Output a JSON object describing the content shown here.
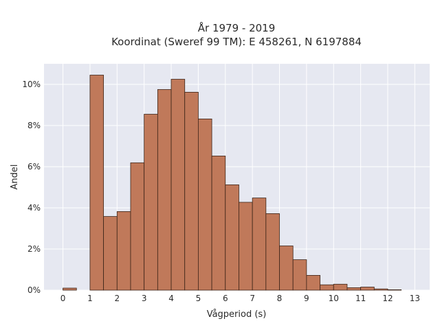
{
  "chart_data": {
    "type": "bar",
    "title_lines": [
      "År 1979 - 2019",
      "Koordinat (Sweref 99 TM): E 458261, N 6197884"
    ],
    "xlabel": "Vågperiod (s)",
    "ylabel": "Andel",
    "bin_width": 0.5,
    "bin_starts": [
      0,
      0.5,
      1,
      1.5,
      2,
      2.5,
      3,
      3.5,
      4,
      4.5,
      5,
      5.5,
      6,
      6.5,
      7,
      7.5,
      8,
      8.5,
      9,
      9.5,
      10,
      10.5,
      11,
      11.5,
      12,
      12.5
    ],
    "values": [
      0.1,
      0,
      10.45,
      3.58,
      3.82,
      6.19,
      8.55,
      9.75,
      10.25,
      9.62,
      8.32,
      6.52,
      5.12,
      4.27,
      4.48,
      3.72,
      2.15,
      1.48,
      0.72,
      0.26,
      0.29,
      0.12,
      0.15,
      0.06,
      0.02,
      0
    ],
    "xlim": [
      -0.7,
      13.55
    ],
    "ylim": [
      0,
      11.0
    ],
    "x_ticks": [
      0,
      1,
      2,
      3,
      4,
      5,
      6,
      7,
      8,
      9,
      10,
      11,
      12,
      13
    ],
    "x_tick_labels": [
      "0",
      "1",
      "2",
      "3",
      "4",
      "5",
      "6",
      "7",
      "8",
      "9",
      "10",
      "11",
      "12",
      "13"
    ],
    "y_ticks": [
      0,
      2,
      4,
      6,
      8,
      10
    ],
    "y_tick_labels": [
      "0%",
      "2%",
      "4%",
      "6%",
      "8%",
      "10%"
    ],
    "grid": true,
    "colors": {
      "bar_fill": "#c0795a",
      "bar_edge": "#3b2418",
      "plot_bg": "#e6e8f1",
      "grid": "#ffffff"
    }
  }
}
